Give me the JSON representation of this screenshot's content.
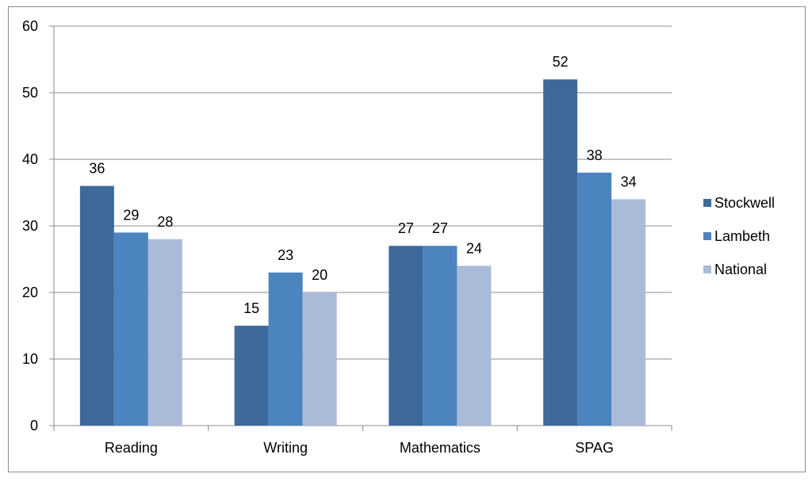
{
  "chart_data": {
    "type": "bar",
    "categories": [
      "Reading",
      "Writing",
      "Mathematics",
      "SPAG"
    ],
    "series": [
      {
        "name": "Stockwell",
        "values": [
          36,
          15,
          27,
          52
        ],
        "color": "#3d6a9b"
      },
      {
        "name": "Lambeth",
        "values": [
          29,
          23,
          27,
          38
        ],
        "color": "#4c84bf"
      },
      {
        "name": "National",
        "values": [
          28,
          20,
          24,
          34
        ],
        "color": "#aabbd9"
      }
    ],
    "ylim": [
      0,
      60
    ],
    "yticks": [
      0,
      10,
      20,
      30,
      40,
      50,
      60
    ],
    "grid": true,
    "legend_position": "right",
    "title": "",
    "xlabel": "",
    "ylabel": ""
  }
}
